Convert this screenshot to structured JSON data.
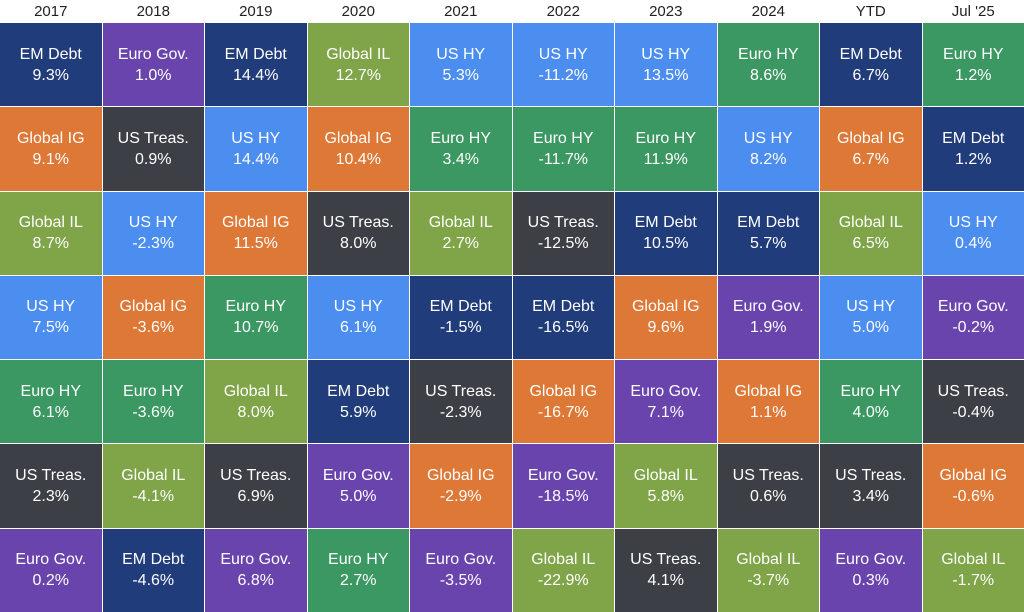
{
  "colors": {
    "EM Debt": "#213c7a",
    "Euro Gov.": "#6a44ad",
    "Global IL": "#7fa548",
    "US HY": "#4b8ef0",
    "Euro HY": "#3b9862",
    "Global IG": "#dd7837",
    "US Treas.": "#3c3f45"
  },
  "chart_data": {
    "type": "table",
    "title": "",
    "columns": [
      "2017",
      "2018",
      "2019",
      "2020",
      "2021",
      "2022",
      "2023",
      "2024",
      "YTD",
      "Jul '25"
    ],
    "rank_order": "highest return at top, lowest at bottom",
    "data": [
      [
        {
          "name": "EM Debt",
          "value": "9.3%"
        },
        {
          "name": "Global IG",
          "value": "9.1%"
        },
        {
          "name": "Global IL",
          "value": "8.7%"
        },
        {
          "name": "US HY",
          "value": "7.5%"
        },
        {
          "name": "Euro HY",
          "value": "6.1%"
        },
        {
          "name": "US Treas.",
          "value": "2.3%"
        },
        {
          "name": "Euro Gov.",
          "value": "0.2%"
        }
      ],
      [
        {
          "name": "Euro Gov.",
          "value": "1.0%"
        },
        {
          "name": "US Treas.",
          "value": "0.9%"
        },
        {
          "name": "US HY",
          "value": "-2.3%"
        },
        {
          "name": "Global IG",
          "value": "-3.6%"
        },
        {
          "name": "Euro HY",
          "value": "-3.6%"
        },
        {
          "name": "Global IL",
          "value": "-4.1%"
        },
        {
          "name": "EM Debt",
          "value": "-4.6%"
        }
      ],
      [
        {
          "name": "EM Debt",
          "value": "14.4%"
        },
        {
          "name": "US HY",
          "value": "14.4%"
        },
        {
          "name": "Global IG",
          "value": "11.5%"
        },
        {
          "name": "Euro HY",
          "value": "10.7%"
        },
        {
          "name": "Global IL",
          "value": "8.0%"
        },
        {
          "name": "US Treas.",
          "value": "6.9%"
        },
        {
          "name": "Euro Gov.",
          "value": "6.8%"
        }
      ],
      [
        {
          "name": "Global IL",
          "value": "12.7%"
        },
        {
          "name": "Global IG",
          "value": "10.4%"
        },
        {
          "name": "US Treas.",
          "value": "8.0%"
        },
        {
          "name": "US HY",
          "value": "6.1%"
        },
        {
          "name": "EM Debt",
          "value": "5.9%"
        },
        {
          "name": "Euro Gov.",
          "value": "5.0%"
        },
        {
          "name": "Euro HY",
          "value": "2.7%"
        }
      ],
      [
        {
          "name": "US HY",
          "value": "5.3%"
        },
        {
          "name": "Euro HY",
          "value": "3.4%"
        },
        {
          "name": "Global IL",
          "value": "2.7%"
        },
        {
          "name": "EM Debt",
          "value": "-1.5%"
        },
        {
          "name": "US Treas.",
          "value": "-2.3%"
        },
        {
          "name": "Global IG",
          "value": "-2.9%"
        },
        {
          "name": "Euro Gov.",
          "value": "-3.5%"
        }
      ],
      [
        {
          "name": "US HY",
          "value": "-11.2%"
        },
        {
          "name": "Euro HY",
          "value": "-11.7%"
        },
        {
          "name": "US Treas.",
          "value": "-12.5%"
        },
        {
          "name": "EM Debt",
          "value": "-16.5%"
        },
        {
          "name": "Global IG",
          "value": "-16.7%"
        },
        {
          "name": "Euro Gov.",
          "value": "-18.5%"
        },
        {
          "name": "Global IL",
          "value": "-22.9%"
        }
      ],
      [
        {
          "name": "US HY",
          "value": "13.5%"
        },
        {
          "name": "Euro HY",
          "value": "11.9%"
        },
        {
          "name": "EM Debt",
          "value": "10.5%"
        },
        {
          "name": "Global IG",
          "value": "9.6%"
        },
        {
          "name": "Euro Gov.",
          "value": "7.1%"
        },
        {
          "name": "Global IL",
          "value": "5.8%"
        },
        {
          "name": "US Treas.",
          "value": "4.1%"
        }
      ],
      [
        {
          "name": "Euro HY",
          "value": "8.6%"
        },
        {
          "name": "US HY",
          "value": "8.2%"
        },
        {
          "name": "EM Debt",
          "value": "5.7%"
        },
        {
          "name": "Euro Gov.",
          "value": "1.9%"
        },
        {
          "name": "Global IG",
          "value": "1.1%"
        },
        {
          "name": "US Treas.",
          "value": "0.6%"
        },
        {
          "name": "Global IL",
          "value": "-3.7%"
        }
      ],
      [
        {
          "name": "EM Debt",
          "value": "6.7%"
        },
        {
          "name": "Global IG",
          "value": "6.7%"
        },
        {
          "name": "Global IL",
          "value": "6.5%"
        },
        {
          "name": "US HY",
          "value": "5.0%"
        },
        {
          "name": "Euro HY",
          "value": "4.0%"
        },
        {
          "name": "US Treas.",
          "value": "3.4%"
        },
        {
          "name": "Euro Gov.",
          "value": "0.3%"
        }
      ],
      [
        {
          "name": "Euro HY",
          "value": "1.2%"
        },
        {
          "name": "EM Debt",
          "value": "1.2%"
        },
        {
          "name": "US HY",
          "value": "0.4%"
        },
        {
          "name": "Euro Gov.",
          "value": "-0.2%"
        },
        {
          "name": "US Treas.",
          "value": "-0.4%"
        },
        {
          "name": "Global IG",
          "value": "-0.6%"
        },
        {
          "name": "Global IL",
          "value": "-1.7%"
        }
      ]
    ]
  }
}
